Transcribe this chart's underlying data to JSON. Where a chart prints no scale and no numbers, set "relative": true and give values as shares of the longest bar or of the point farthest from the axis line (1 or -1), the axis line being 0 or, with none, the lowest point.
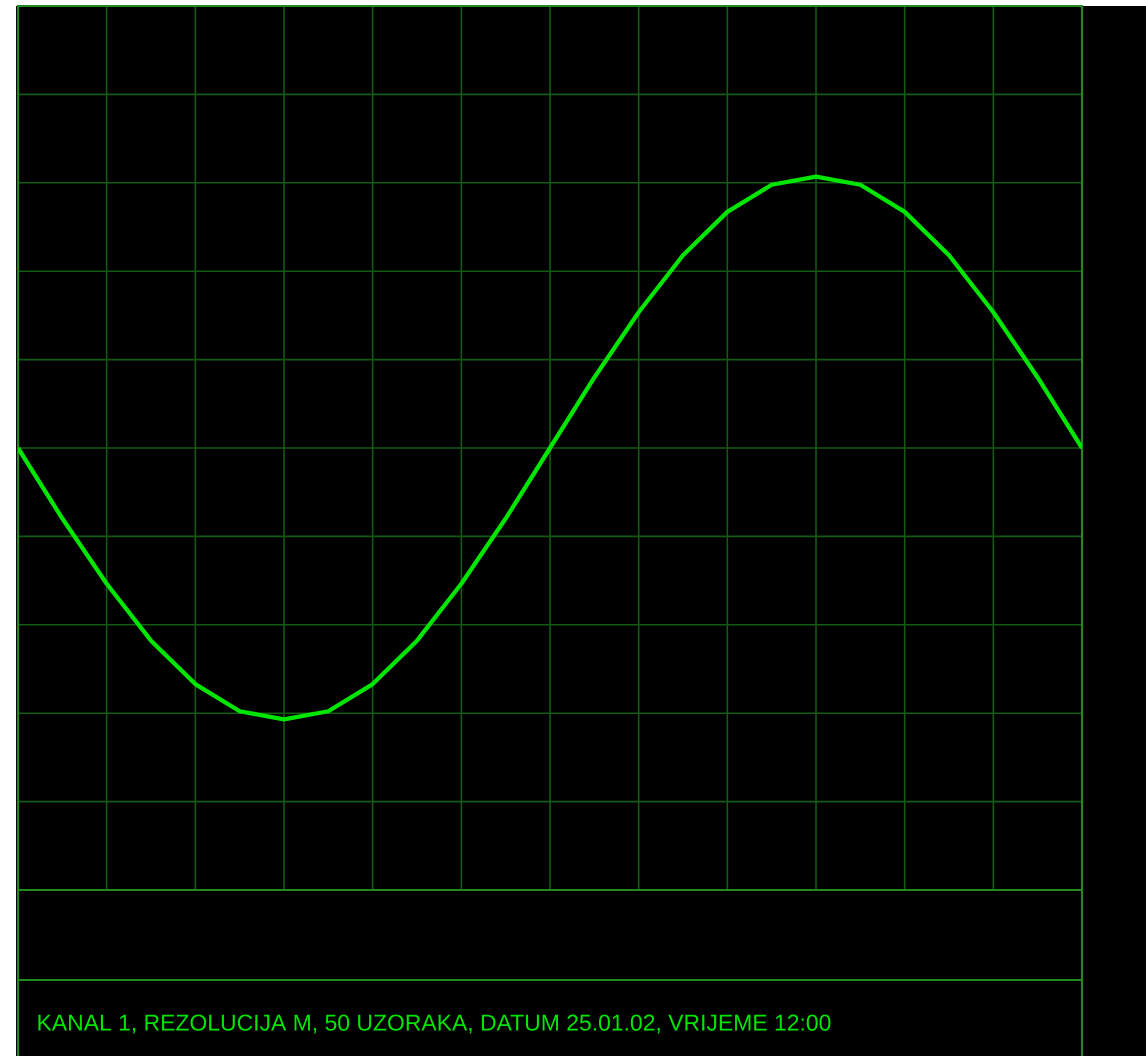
{
  "chart_data": {
    "type": "line",
    "relative": true,
    "grid": true,
    "color": "#00e600",
    "categories": [
      null,
      null,
      null,
      null,
      null,
      null,
      null,
      null,
      null,
      null,
      null,
      null,
      null,
      null,
      null,
      null,
      null,
      null,
      null,
      null,
      null,
      null,
      null,
      null,
      null
    ],
    "values": [
      0,
      -0.26,
      -0.5,
      -0.71,
      -0.87,
      -0.97,
      -1,
      -0.97,
      -0.87,
      -0.71,
      -0.5,
      -0.26,
      0,
      0.26,
      0.5,
      0.71,
      0.87,
      0.97,
      1,
      0.97,
      0.87,
      0.71,
      0.5,
      0.26,
      0
    ],
    "annotations": [
      "KANAL 1, REZOLUCIJA M, 50 UZORAKA, DATUM 25.01.02, VRIJEME 12:00"
    ]
  }
}
